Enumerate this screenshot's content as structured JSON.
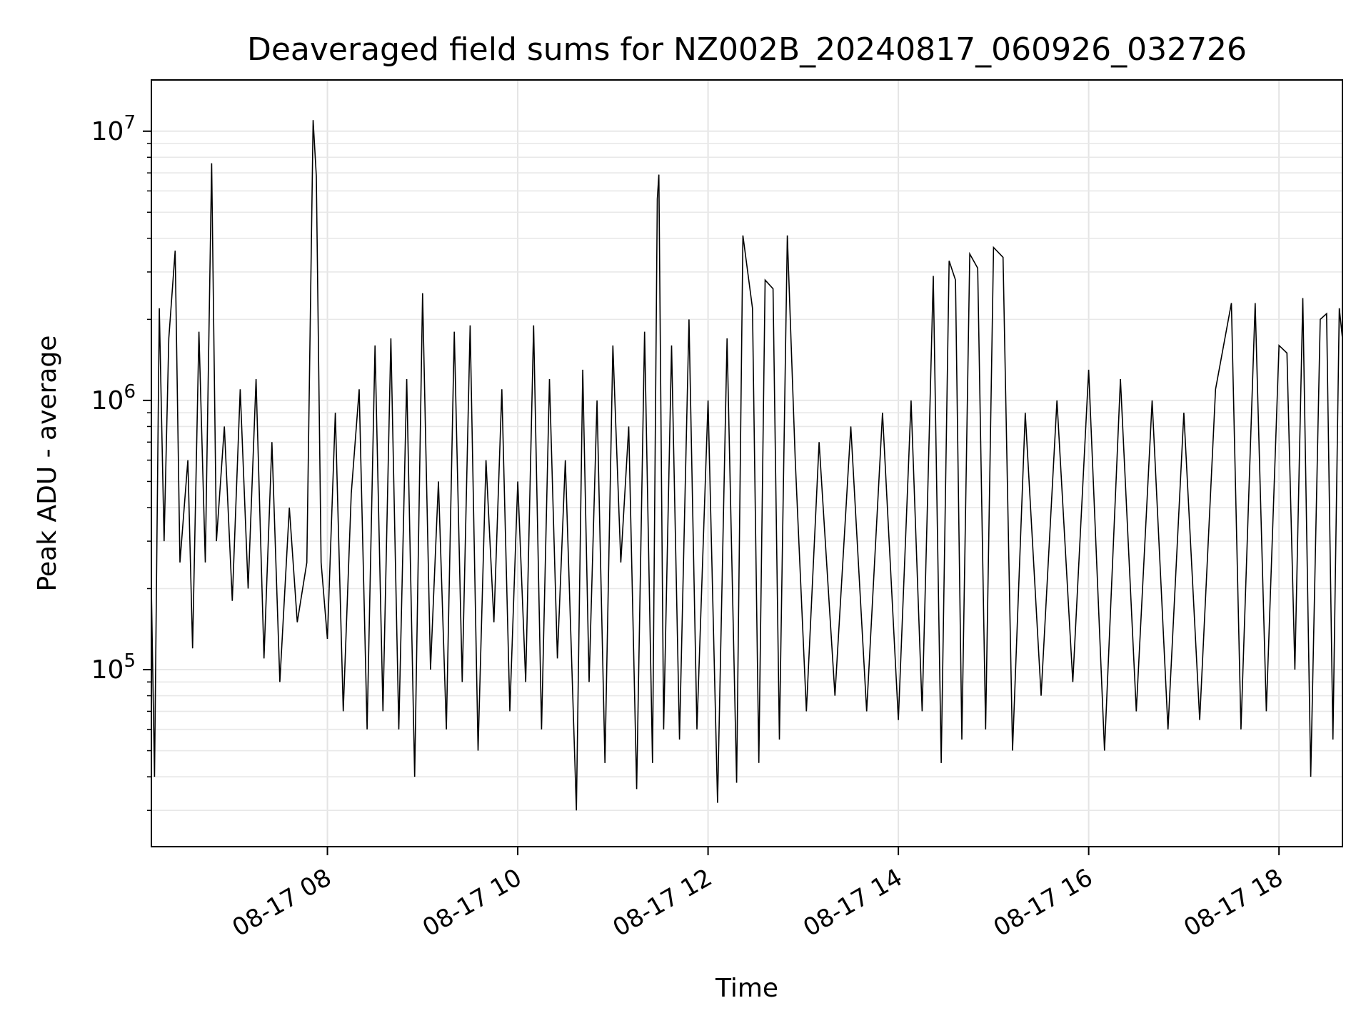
{
  "chart_data": {
    "type": "line",
    "title": "Deaveraged field sums for NZ002B_20240817_060926_032726",
    "xlabel": "Time",
    "ylabel": "Peak ADU - average",
    "x_range": [
      "2024-08-17 06:09",
      "2024-08-17 18:40"
    ],
    "ylim": [
      22000,
      15500000
    ],
    "y_scale": "log",
    "grid": true,
    "legend": "none",
    "x_ticks": [
      {
        "x": "2024-08-17 08:00",
        "label": "08-17 08"
      },
      {
        "x": "2024-08-17 10:00",
        "label": "08-17 10"
      },
      {
        "x": "2024-08-17 12:00",
        "label": "08-17 12"
      },
      {
        "x": "2024-08-17 14:00",
        "label": "08-17 14"
      },
      {
        "x": "2024-08-17 16:00",
        "label": "08-17 16"
      },
      {
        "x": "2024-08-17 18:00",
        "label": "08-17 18"
      }
    ],
    "y_ticks": [
      {
        "value": 100000,
        "base": "10",
        "exp": "5"
      },
      {
        "value": 1000000,
        "base": "10",
        "exp": "6"
      },
      {
        "value": 10000000,
        "base": "10",
        "exp": "7"
      }
    ],
    "series": [
      {
        "color": "#000000",
        "points": [
          [
            "2024-08-17 06:09",
            200000
          ],
          [
            "2024-08-17 06:11",
            40000
          ],
          [
            "2024-08-17 06:14",
            2200000
          ],
          [
            "2024-08-17 06:17",
            300000
          ],
          [
            "2024-08-17 06:20",
            1700000
          ],
          [
            "2024-08-17 06:24",
            3600000
          ],
          [
            "2024-08-17 06:27",
            250000
          ],
          [
            "2024-08-17 06:32",
            600000
          ],
          [
            "2024-08-17 06:35",
            120000
          ],
          [
            "2024-08-17 06:39",
            1800000
          ],
          [
            "2024-08-17 06:43",
            250000
          ],
          [
            "2024-08-17 06:47",
            7600000
          ],
          [
            "2024-08-17 06:50",
            300000
          ],
          [
            "2024-08-17 06:55",
            800000
          ],
          [
            "2024-08-17 07:00",
            180000
          ],
          [
            "2024-08-17 07:05",
            1100000
          ],
          [
            "2024-08-17 07:10",
            200000
          ],
          [
            "2024-08-17 07:15",
            1200000
          ],
          [
            "2024-08-17 07:20",
            110000
          ],
          [
            "2024-08-17 07:25",
            700000
          ],
          [
            "2024-08-17 07:30",
            90000
          ],
          [
            "2024-08-17 07:36",
            400000
          ],
          [
            "2024-08-17 07:41",
            150000
          ],
          [
            "2024-08-17 07:47",
            250000
          ],
          [
            "2024-08-17 07:51",
            11000000
          ],
          [
            "2024-08-17 07:53",
            6800000
          ],
          [
            "2024-08-17 07:56",
            250000
          ],
          [
            "2024-08-17 08:00",
            130000
          ],
          [
            "2024-08-17 08:05",
            900000
          ],
          [
            "2024-08-17 08:10",
            70000
          ],
          [
            "2024-08-17 08:15",
            450000
          ],
          [
            "2024-08-17 08:20",
            1100000
          ],
          [
            "2024-08-17 08:25",
            60000
          ],
          [
            "2024-08-17 08:30",
            1600000
          ],
          [
            "2024-08-17 08:35",
            70000
          ],
          [
            "2024-08-17 08:40",
            1700000
          ],
          [
            "2024-08-17 08:45",
            60000
          ],
          [
            "2024-08-17 08:50",
            1200000
          ],
          [
            "2024-08-17 08:55",
            40000
          ],
          [
            "2024-08-17 09:00",
            2500000
          ],
          [
            "2024-08-17 09:05",
            100000
          ],
          [
            "2024-08-17 09:10",
            500000
          ],
          [
            "2024-08-17 09:15",
            60000
          ],
          [
            "2024-08-17 09:20",
            1800000
          ],
          [
            "2024-08-17 09:25",
            90000
          ],
          [
            "2024-08-17 09:30",
            1900000
          ],
          [
            "2024-08-17 09:35",
            50000
          ],
          [
            "2024-08-17 09:40",
            600000
          ],
          [
            "2024-08-17 09:45",
            150000
          ],
          [
            "2024-08-17 09:50",
            1100000
          ],
          [
            "2024-08-17 09:55",
            70000
          ],
          [
            "2024-08-17 10:00",
            500000
          ],
          [
            "2024-08-17 10:05",
            90000
          ],
          [
            "2024-08-17 10:10",
            1900000
          ],
          [
            "2024-08-17 10:15",
            60000
          ],
          [
            "2024-08-17 10:20",
            1200000
          ],
          [
            "2024-08-17 10:25",
            110000
          ],
          [
            "2024-08-17 10:30",
            600000
          ],
          [
            "2024-08-17 10:37",
            30000
          ],
          [
            "2024-08-17 10:41",
            1300000
          ],
          [
            "2024-08-17 10:45",
            90000
          ],
          [
            "2024-08-17 10:50",
            1000000
          ],
          [
            "2024-08-17 10:55",
            45000
          ],
          [
            "2024-08-17 11:00",
            1600000
          ],
          [
            "2024-08-17 11:05",
            250000
          ],
          [
            "2024-08-17 11:10",
            800000
          ],
          [
            "2024-08-17 11:15",
            36000
          ],
          [
            "2024-08-17 11:20",
            1800000
          ],
          [
            "2024-08-17 11:25",
            45000
          ],
          [
            "2024-08-17 11:28",
            5600000
          ],
          [
            "2024-08-17 11:29",
            6900000
          ],
          [
            "2024-08-17 11:32",
            60000
          ],
          [
            "2024-08-17 11:37",
            1600000
          ],
          [
            "2024-08-17 11:42",
            55000
          ],
          [
            "2024-08-17 11:48",
            2000000
          ],
          [
            "2024-08-17 11:53",
            60000
          ],
          [
            "2024-08-17 12:00",
            1000000
          ],
          [
            "2024-08-17 12:06",
            32000
          ],
          [
            "2024-08-17 12:12",
            1700000
          ],
          [
            "2024-08-17 12:18",
            38000
          ],
          [
            "2024-08-17 12:22",
            4100000
          ],
          [
            "2024-08-17 12:28",
            2200000
          ],
          [
            "2024-08-17 12:32",
            45000
          ],
          [
            "2024-08-17 12:36",
            2800000
          ],
          [
            "2024-08-17 12:41",
            2600000
          ],
          [
            "2024-08-17 12:45",
            55000
          ],
          [
            "2024-08-17 12:50",
            4100000
          ],
          [
            "2024-08-17 12:55",
            600000
          ],
          [
            "2024-08-17 13:02",
            70000
          ],
          [
            "2024-08-17 13:10",
            700000
          ],
          [
            "2024-08-17 13:20",
            80000
          ],
          [
            "2024-08-17 13:30",
            800000
          ],
          [
            "2024-08-17 13:40",
            70000
          ],
          [
            "2024-08-17 13:50",
            900000
          ],
          [
            "2024-08-17 14:00",
            65000
          ],
          [
            "2024-08-17 14:08",
            1000000
          ],
          [
            "2024-08-17 14:15",
            70000
          ],
          [
            "2024-08-17 14:22",
            2900000
          ],
          [
            "2024-08-17 14:27",
            45000
          ],
          [
            "2024-08-17 14:32",
            3300000
          ],
          [
            "2024-08-17 14:36",
            2800000
          ],
          [
            "2024-08-17 14:40",
            55000
          ],
          [
            "2024-08-17 14:45",
            3500000
          ],
          [
            "2024-08-17 14:50",
            3100000
          ],
          [
            "2024-08-17 14:55",
            60000
          ],
          [
            "2024-08-17 15:00",
            3700000
          ],
          [
            "2024-08-17 15:06",
            3400000
          ],
          [
            "2024-08-17 15:12",
            50000
          ],
          [
            "2024-08-17 15:20",
            900000
          ],
          [
            "2024-08-17 15:30",
            80000
          ],
          [
            "2024-08-17 15:40",
            1000000
          ],
          [
            "2024-08-17 15:50",
            90000
          ],
          [
            "2024-08-17 16:00",
            1300000
          ],
          [
            "2024-08-17 16:10",
            50000
          ],
          [
            "2024-08-17 16:20",
            1200000
          ],
          [
            "2024-08-17 16:30",
            70000
          ],
          [
            "2024-08-17 16:40",
            1000000
          ],
          [
            "2024-08-17 16:50",
            60000
          ],
          [
            "2024-08-17 17:00",
            900000
          ],
          [
            "2024-08-17 17:10",
            65000
          ],
          [
            "2024-08-17 17:20",
            1100000
          ],
          [
            "2024-08-17 17:30",
            2300000
          ],
          [
            "2024-08-17 17:36",
            60000
          ],
          [
            "2024-08-17 17:45",
            2300000
          ],
          [
            "2024-08-17 17:52",
            70000
          ],
          [
            "2024-08-17 18:00",
            1600000
          ],
          [
            "2024-08-17 18:05",
            1500000
          ],
          [
            "2024-08-17 18:10",
            100000
          ],
          [
            "2024-08-17 18:15",
            2400000
          ],
          [
            "2024-08-17 18:20",
            40000
          ],
          [
            "2024-08-17 18:26",
            2000000
          ],
          [
            "2024-08-17 18:30",
            2100000
          ],
          [
            "2024-08-17 18:34",
            55000
          ],
          [
            "2024-08-17 18:38",
            2200000
          ],
          [
            "2024-08-17 18:40",
            1700000
          ]
        ]
      }
    ]
  }
}
